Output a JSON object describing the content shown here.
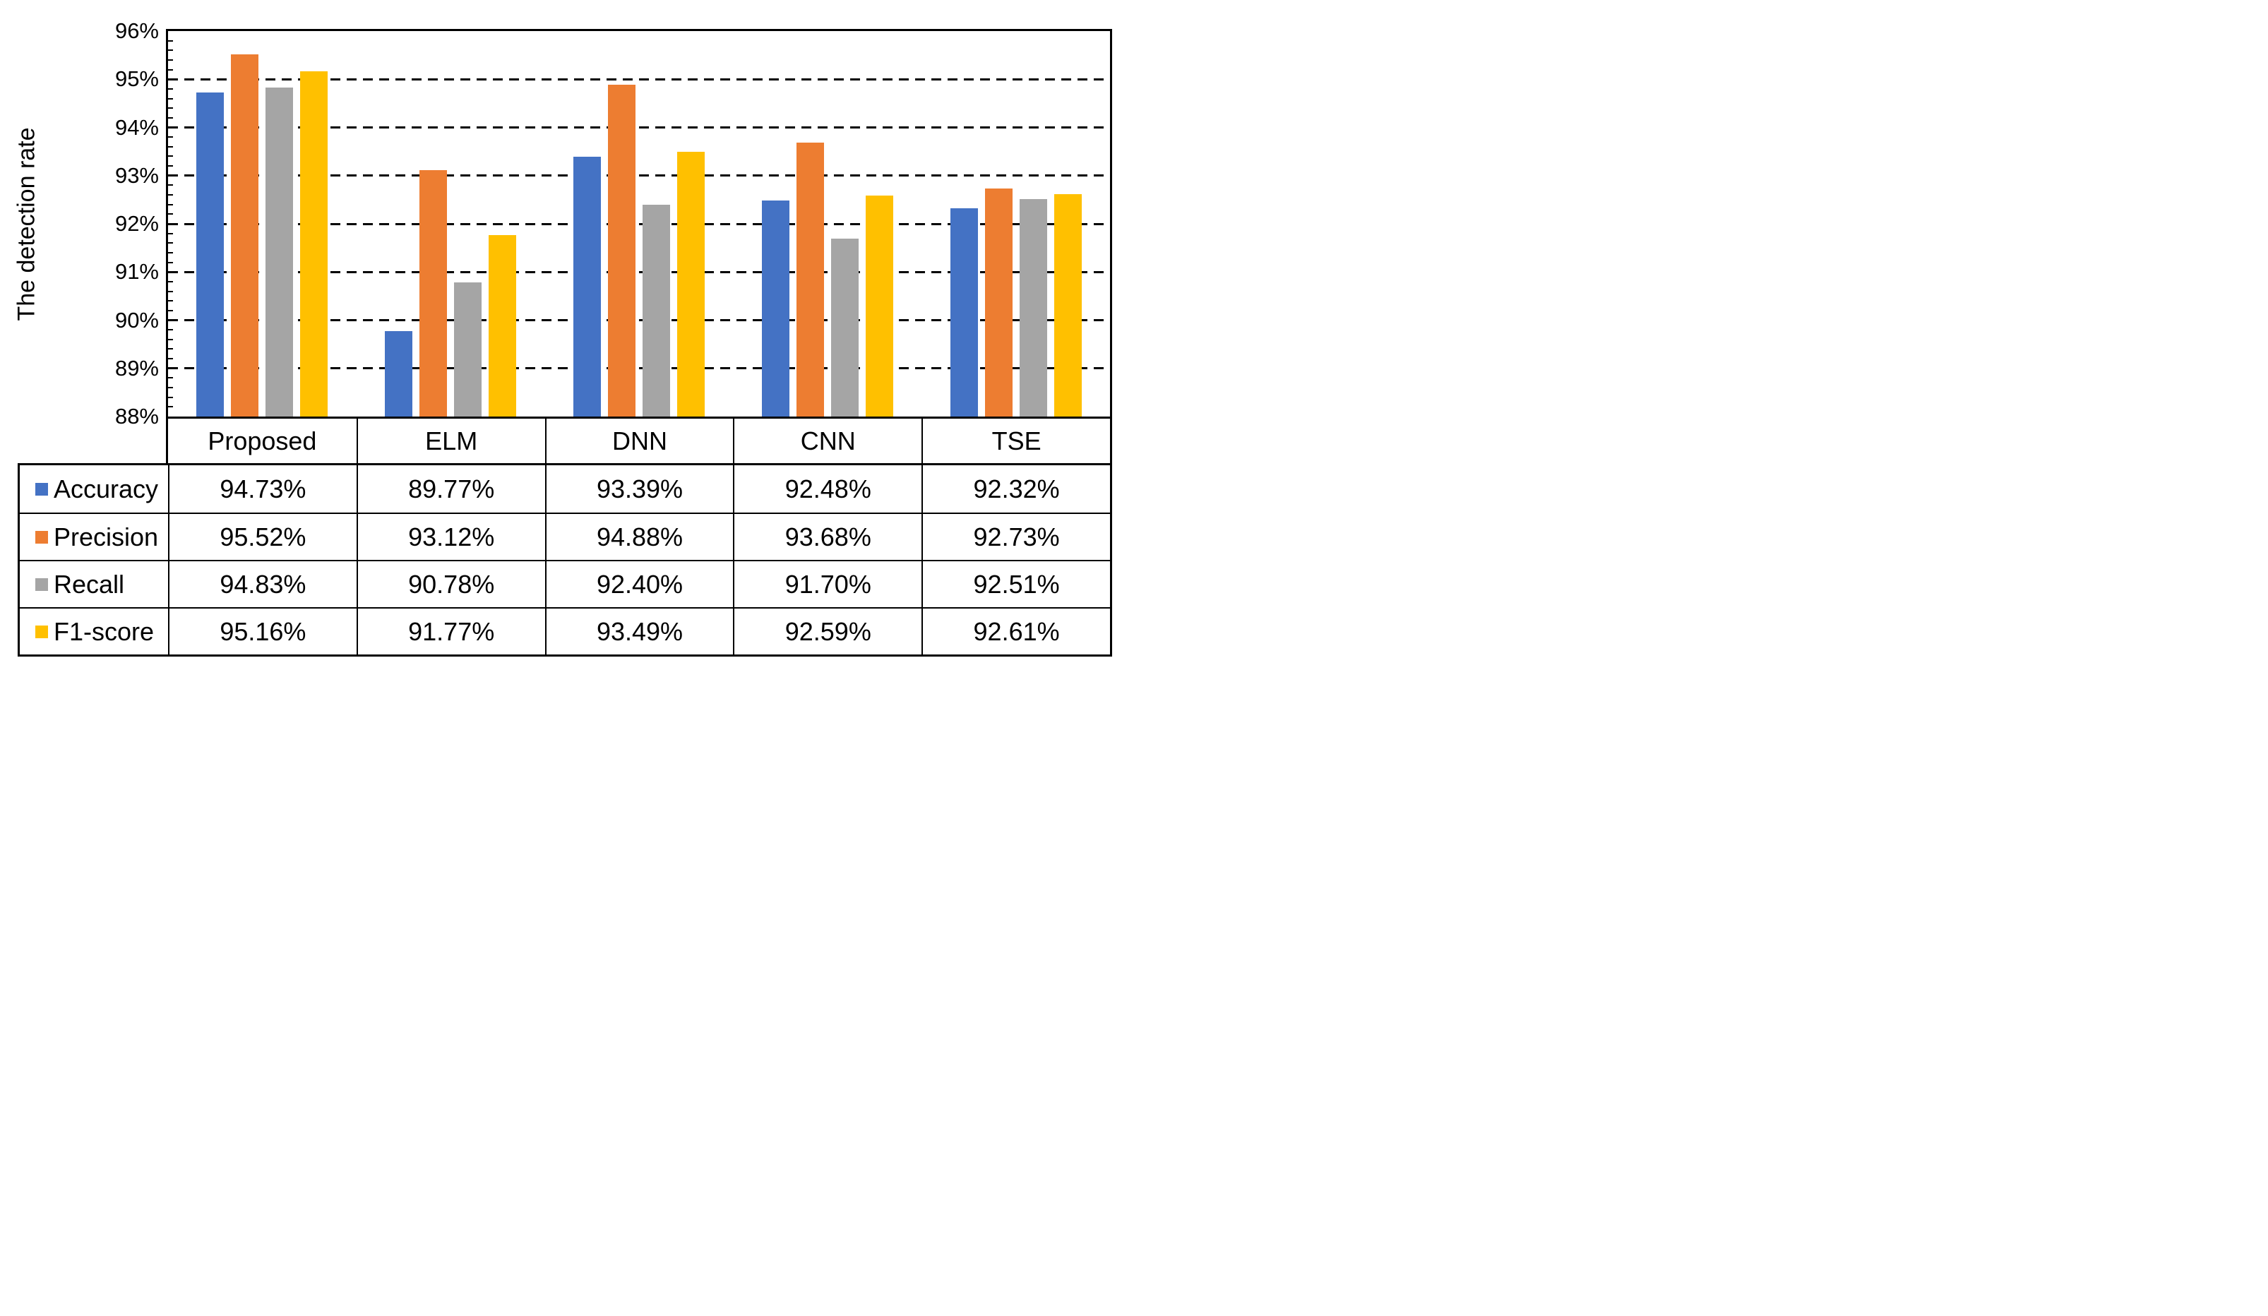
{
  "chart_data": {
    "type": "bar",
    "title": "",
    "xlabel": "",
    "ylabel": "The detection rate",
    "ylim": [
      88,
      96
    ],
    "y_major_step": 1,
    "y_minor_step": 0.2,
    "y_tick_labels": [
      "96%",
      "95%",
      "94%",
      "93%",
      "92%",
      "91%",
      "90%",
      "89%",
      "88%"
    ],
    "grid": "horizontal-dashed-major",
    "legend_position": "table-left-column",
    "categories": [
      "Proposed",
      "ELM",
      "DNN",
      "CNN",
      "TSE"
    ],
    "series": [
      {
        "name": "Accuracy",
        "color": "#4472C4",
        "values": [
          94.73,
          89.77,
          93.39,
          92.48,
          92.32
        ],
        "labels": [
          "94.73%",
          "89.77%",
          "93.39%",
          "92.48%",
          "92.32%"
        ]
      },
      {
        "name": "Precision",
        "color": "#ED7D31",
        "values": [
          95.52,
          93.12,
          94.88,
          93.68,
          92.73
        ],
        "labels": [
          "95.52%",
          "93.12%",
          "94.88%",
          "93.68%",
          "92.73%"
        ]
      },
      {
        "name": "Recall",
        "color": "#A5A5A5",
        "values": [
          94.83,
          90.78,
          92.4,
          91.7,
          92.51
        ],
        "labels": [
          "94.83%",
          "90.78%",
          "92.40%",
          "91.70%",
          "92.51%"
        ]
      },
      {
        "name": "F1-score",
        "color": "#FFC000",
        "values": [
          95.16,
          91.77,
          93.49,
          92.59,
          92.61
        ],
        "labels": [
          "95.16%",
          "91.77%",
          "93.49%",
          "92.59%",
          "92.61%"
        ]
      }
    ]
  }
}
